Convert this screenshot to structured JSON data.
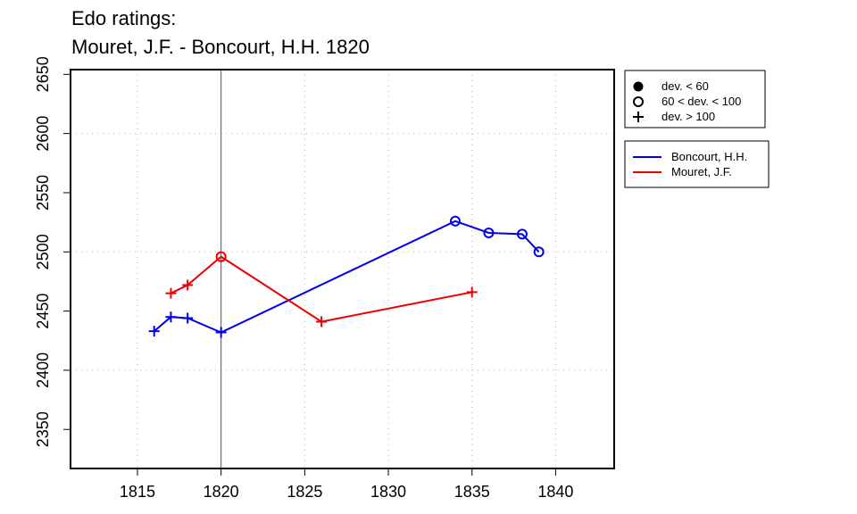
{
  "chart_data": {
    "type": "line",
    "title_lines": [
      "Edo ratings:",
      "Mouret, J.F. - Boncourt, H.H. 1820"
    ],
    "xlabel": "",
    "ylabel": "",
    "xlim": [
      1811,
      1843.5
    ],
    "ylim": [
      2317,
      2654
    ],
    "x_ticks": [
      1815,
      1820,
      1825,
      1830,
      1835,
      1840
    ],
    "y_ticks": [
      2350,
      2400,
      2450,
      2500,
      2550,
      2600,
      2650
    ],
    "grid": true,
    "marked_year": 1820,
    "symbol_legend": [
      {
        "symbol": "filled-circle",
        "label": "dev. < 60"
      },
      {
        "symbol": "open-circle",
        "label": "60 < dev. < 100"
      },
      {
        "symbol": "plus",
        "label": "dev. > 100"
      }
    ],
    "series": [
      {
        "name": "Boncourt, H.H.",
        "color": "#0000ee",
        "points": [
          {
            "x": 1816,
            "y": 2433,
            "marker": "plus"
          },
          {
            "x": 1817,
            "y": 2445,
            "marker": "plus"
          },
          {
            "x": 1818,
            "y": 2444,
            "marker": "plus"
          },
          {
            "x": 1820,
            "y": 2432,
            "marker": "plus"
          },
          {
            "x": 1834,
            "y": 2526,
            "marker": "open-circle"
          },
          {
            "x": 1836,
            "y": 2516,
            "marker": "open-circle"
          },
          {
            "x": 1838,
            "y": 2515,
            "marker": "open-circle"
          },
          {
            "x": 1839,
            "y": 2500,
            "marker": "open-circle"
          }
        ]
      },
      {
        "name": "Mouret, J.F.",
        "color": "#ee0000",
        "points": [
          {
            "x": 1817,
            "y": 2465,
            "marker": "plus"
          },
          {
            "x": 1818,
            "y": 2472,
            "marker": "plus"
          },
          {
            "x": 1820,
            "y": 2496,
            "marker": "open-circle"
          },
          {
            "x": 1826,
            "y": 2441,
            "marker": "plus"
          },
          {
            "x": 1835,
            "y": 2466,
            "marker": "plus"
          }
        ]
      }
    ]
  }
}
